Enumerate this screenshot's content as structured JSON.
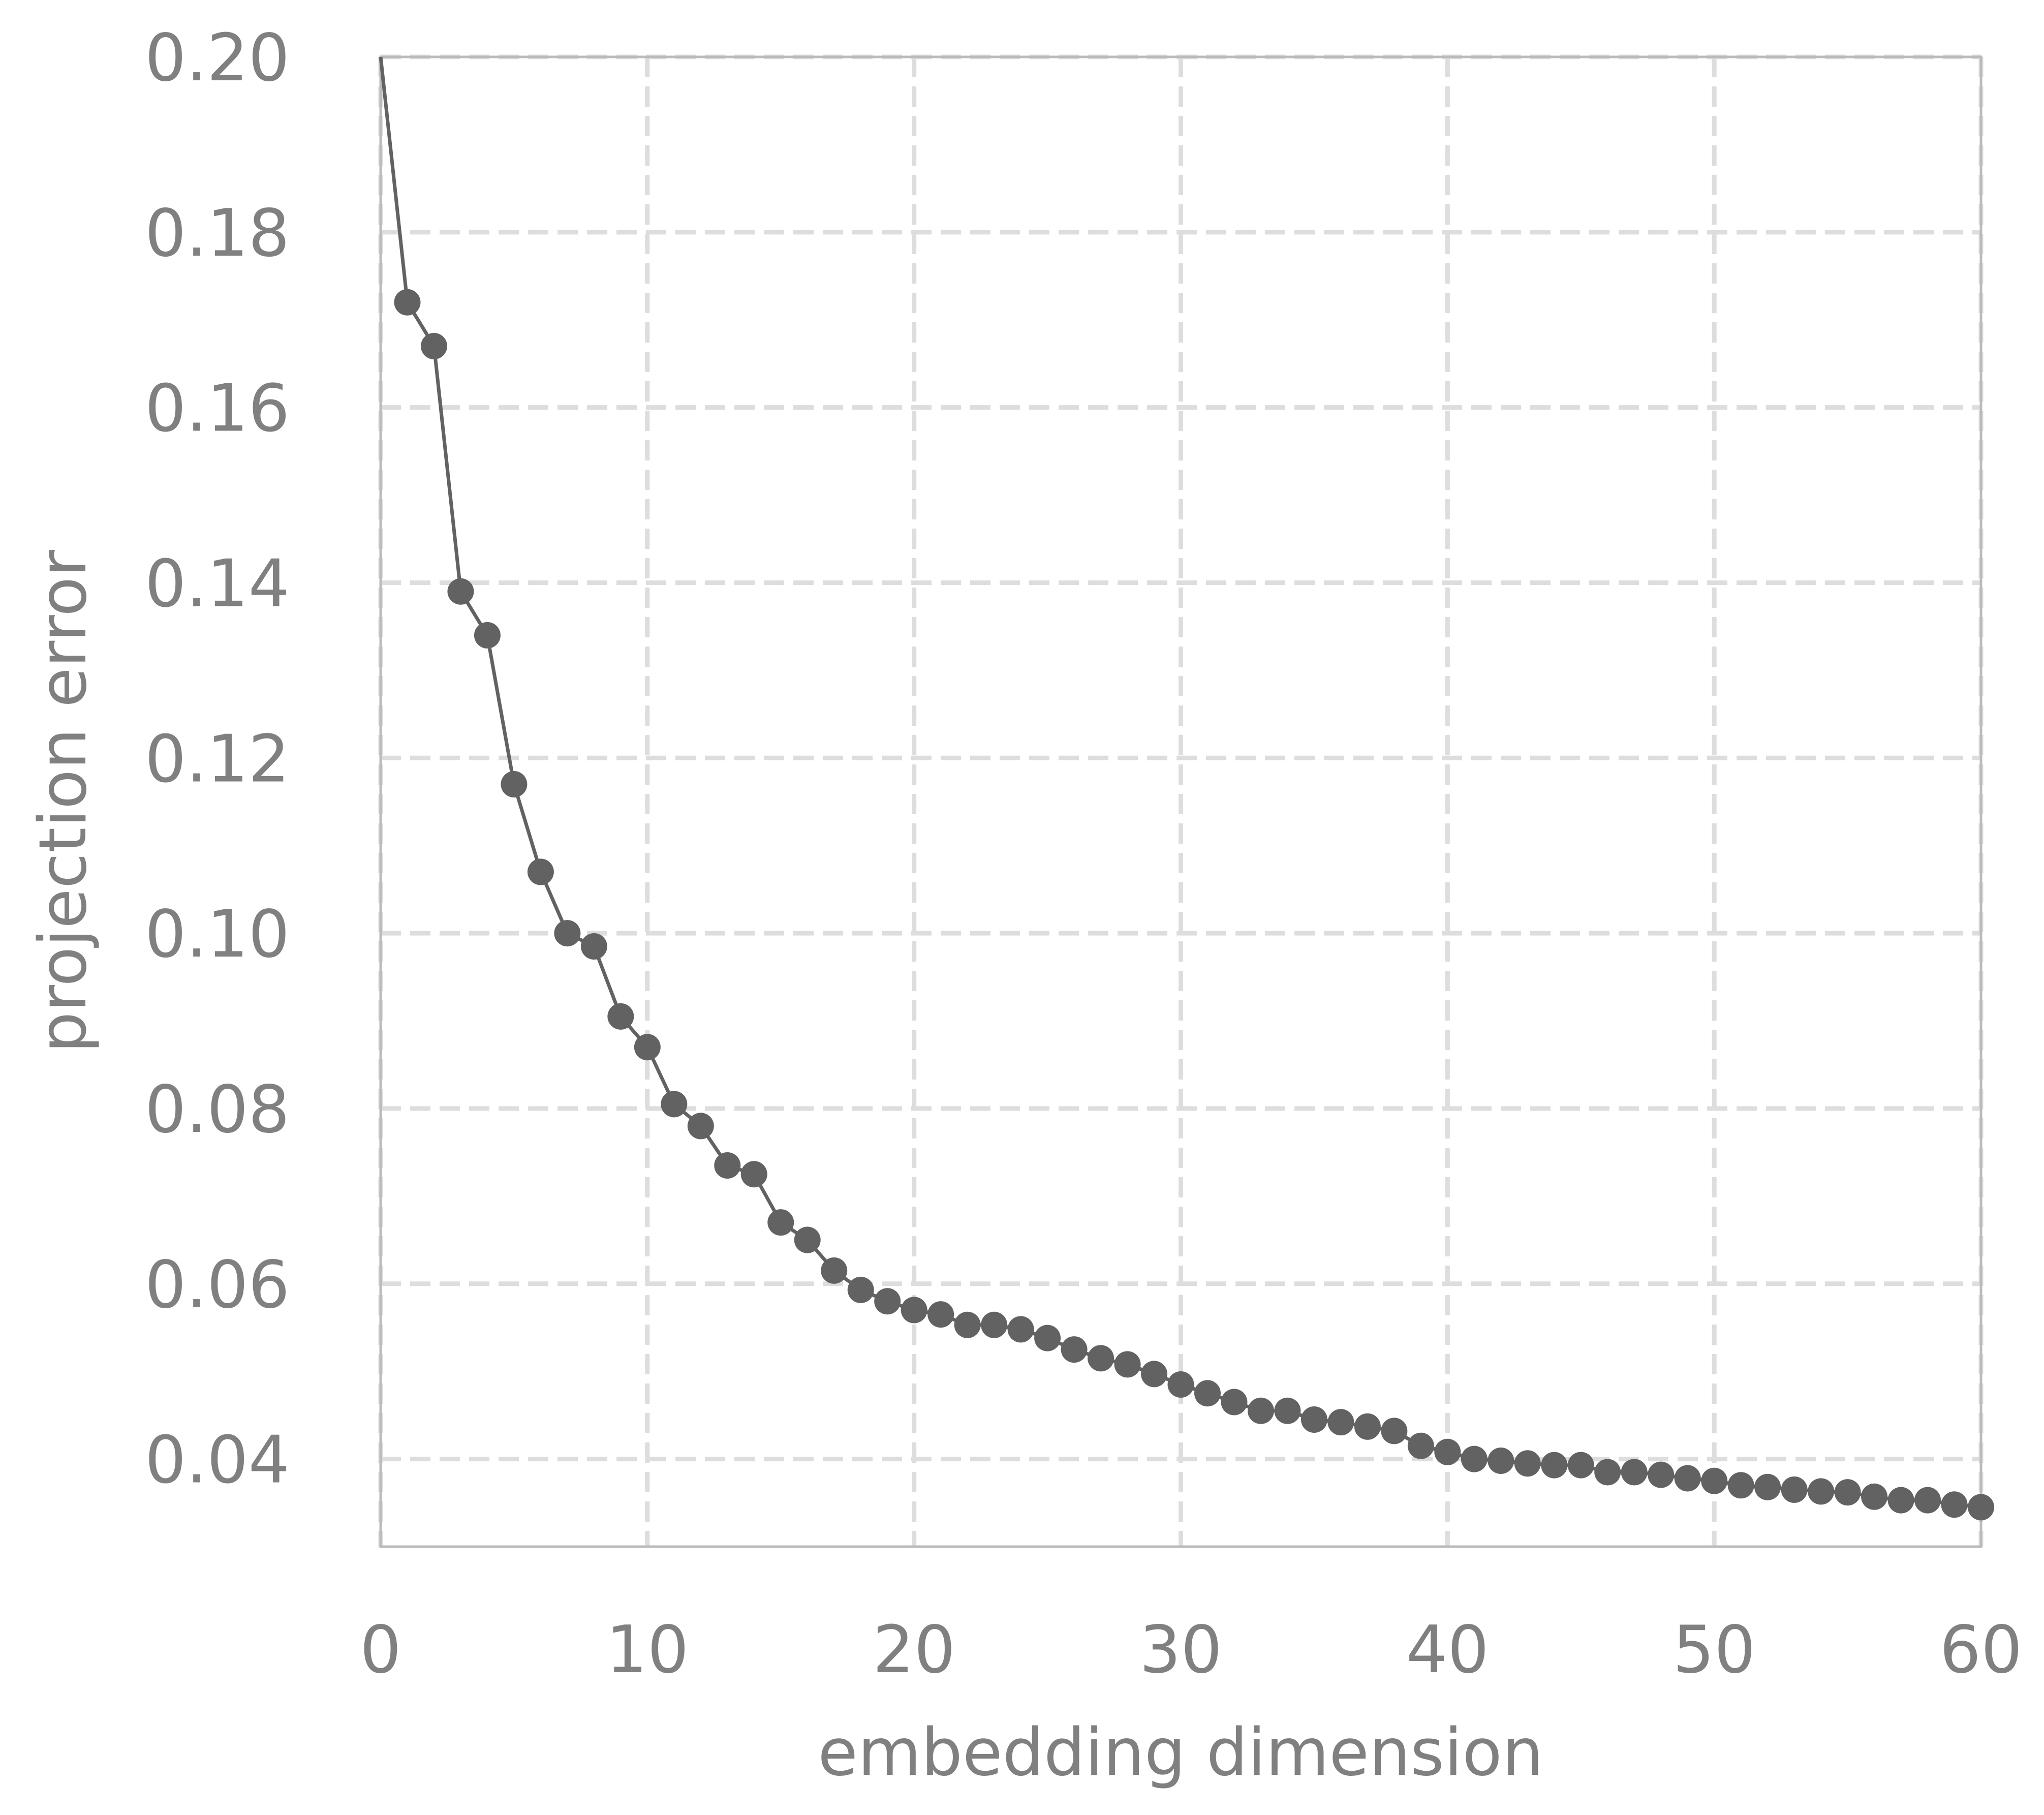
{
  "chart_data": {
    "type": "line",
    "title": "",
    "xlabel": "embedding dimension",
    "ylabel": "projection error",
    "xlim": [
      0,
      60
    ],
    "ylim": [
      0.03,
      0.2
    ],
    "xticks": [
      0,
      10,
      20,
      30,
      40,
      50,
      60
    ],
    "xtick_labels": [
      "0",
      "10",
      "20",
      "30",
      "40",
      "50",
      "60"
    ],
    "yticks": [
      0.04,
      0.06,
      0.08,
      0.1,
      0.12,
      0.14,
      0.16,
      0.18,
      0.2
    ],
    "ytick_labels": [
      "0.04",
      "0.06",
      "0.08",
      "0.10",
      "0.12",
      "0.14",
      "0.16",
      "0.18",
      "0.20"
    ],
    "grid": true,
    "grid_style": "dashed",
    "legend": "none",
    "colors": {
      "series": "#626262",
      "grid": "#dddddd",
      "frame": "#bbbbbb",
      "text": "#808080"
    },
    "series": [
      {
        "line_start": [
          0,
          0.2
        ],
        "x": [
          1,
          2,
          3,
          4,
          5,
          6,
          7,
          8,
          9,
          10,
          11,
          12,
          13,
          14,
          15,
          16,
          17,
          18,
          19,
          20,
          21,
          22,
          23,
          24,
          25,
          26,
          27,
          28,
          29,
          30,
          31,
          32,
          33,
          34,
          35,
          36,
          37,
          38,
          39,
          40,
          41,
          42,
          43,
          44,
          45,
          46,
          47,
          48,
          49,
          50,
          51,
          52,
          53,
          54,
          55,
          56,
          57,
          58,
          59,
          60
        ],
        "values": [
          0.172,
          0.167,
          0.139,
          0.134,
          0.117,
          0.107,
          0.1,
          0.0985,
          0.0905,
          0.087,
          0.0805,
          0.078,
          0.0735,
          0.0725,
          0.067,
          0.065,
          0.0615,
          0.0593,
          0.058,
          0.057,
          0.0565,
          0.0553,
          0.0553,
          0.0548,
          0.0538,
          0.0525,
          0.0515,
          0.0508,
          0.0497,
          0.0485,
          0.0475,
          0.0465,
          0.0455,
          0.0455,
          0.0445,
          0.0442,
          0.0437,
          0.0432,
          0.0415,
          0.0408,
          0.04,
          0.0398,
          0.0395,
          0.0393,
          0.0393,
          0.0385,
          0.0385,
          0.0382,
          0.0378,
          0.0375,
          0.037,
          0.0368,
          0.0365,
          0.0363,
          0.0362,
          0.0357,
          0.0353,
          0.0353,
          0.0348,
          0.0345
        ]
      }
    ]
  }
}
